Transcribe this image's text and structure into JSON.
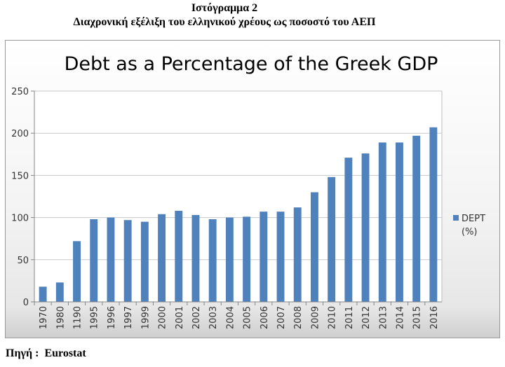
{
  "document": {
    "heading_line1": "Ιστόγραμμα 2",
    "heading_line2": "Διαχρονική εξέλιξη του ελληνικού χρέους ως ποσοστό του ΑΕΠ",
    "source_label": "Πηγή :",
    "source_value": "Eurostat"
  },
  "chart_data": {
    "type": "bar",
    "title": "Debt as a Percentage of the Greek GDP",
    "categories": [
      "1970",
      "1980",
      "1190",
      "1995",
      "1996",
      "1997",
      "1999",
      "2000",
      "2001",
      "2002",
      "2003",
      "2004",
      "2005",
      "2006",
      "2007",
      "2008",
      "2009",
      "2010",
      "2011",
      "2012",
      "2013",
      "2014",
      "2015",
      "2016"
    ],
    "series": [
      {
        "name": "DEPT (%)",
        "legend_lines": [
          "DEPT",
          "(%)"
        ],
        "color": "#4f81bd",
        "values": [
          18,
          23,
          72,
          98,
          100,
          97,
          95,
          104,
          108,
          103,
          98,
          100,
          101,
          107,
          107,
          112,
          130,
          148,
          171,
          176,
          189,
          189,
          197,
          207
        ]
      }
    ],
    "ylim": [
      0,
      250
    ],
    "yticks": [
      0,
      50,
      100,
      150,
      200,
      250
    ],
    "grid": true,
    "legend_position": "right"
  }
}
